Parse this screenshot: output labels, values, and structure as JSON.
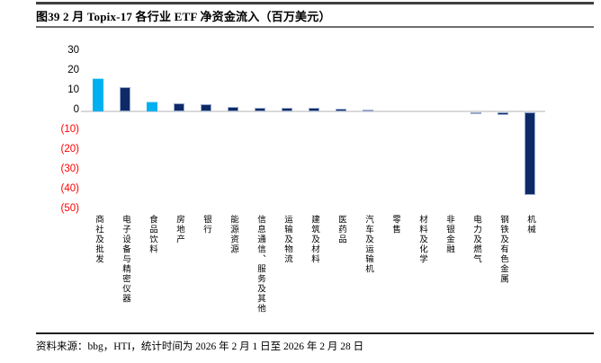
{
  "header": {
    "title": "图39 2 月 Topix-17 各行业 ETF 净资金流入（百万美元）"
  },
  "footer": {
    "source": "资料来源：bbg，HTI，统计时间为 2026 年 2 月 1 日至 2026 年 2 月 28 日"
  },
  "chart_data": {
    "type": "bar",
    "title": "2 月 Topix-17 各行业 ETF 净资金流入（百万美元）",
    "categories": [
      "商社及批发",
      "电子设备与精密仪器",
      "食品饮料",
      "房地产",
      "银行",
      "能源资源",
      "信息通信、服务及其他",
      "运输及物流",
      "建筑及材料",
      "医药品",
      "汽车及运输机",
      "零售",
      "材料及化学",
      "非银金融",
      "电力及燃气",
      "钢铁及有色金属",
      "机械"
    ],
    "values": [
      17,
      12.5,
      5,
      4,
      3.5,
      2.3,
      1.8,
      1.9,
      1.6,
      1.2,
      0.9,
      0.2,
      0.1,
      0,
      -1,
      -1.5,
      -42
    ],
    "bar_colors": [
      "#00b0f0",
      "#0e2a66",
      "#00b0f0",
      "#0e2a66",
      "#0e2a66",
      "#0e2a66",
      "#0e2a66",
      "#0e2a66",
      "#0e2a66",
      "#0e2a66",
      "#0e2a66",
      "#0e2a66",
      "#0e2a66",
      "#0e2a66",
      "#0e2a66",
      "#0e2a66",
      "#0e2a66"
    ],
    "ytick_values": [
      30,
      20,
      10,
      0,
      -10,
      -20,
      -30,
      -40,
      -50
    ],
    "ytick_labels": [
      "30",
      "20",
      "10",
      "0",
      "(10)",
      "(20)",
      "(30)",
      "(40)",
      "(50)"
    ],
    "ylim": [
      -50,
      30
    ],
    "xlabel": "",
    "ylabel": "",
    "grid": "off",
    "legend": "none",
    "colors": {
      "highlight_bar": "#00b0f0",
      "default_bar": "#0e2a66",
      "negative_tick_text": "#ff0000",
      "zero_axis_line": "#d9d9d9"
    }
  }
}
